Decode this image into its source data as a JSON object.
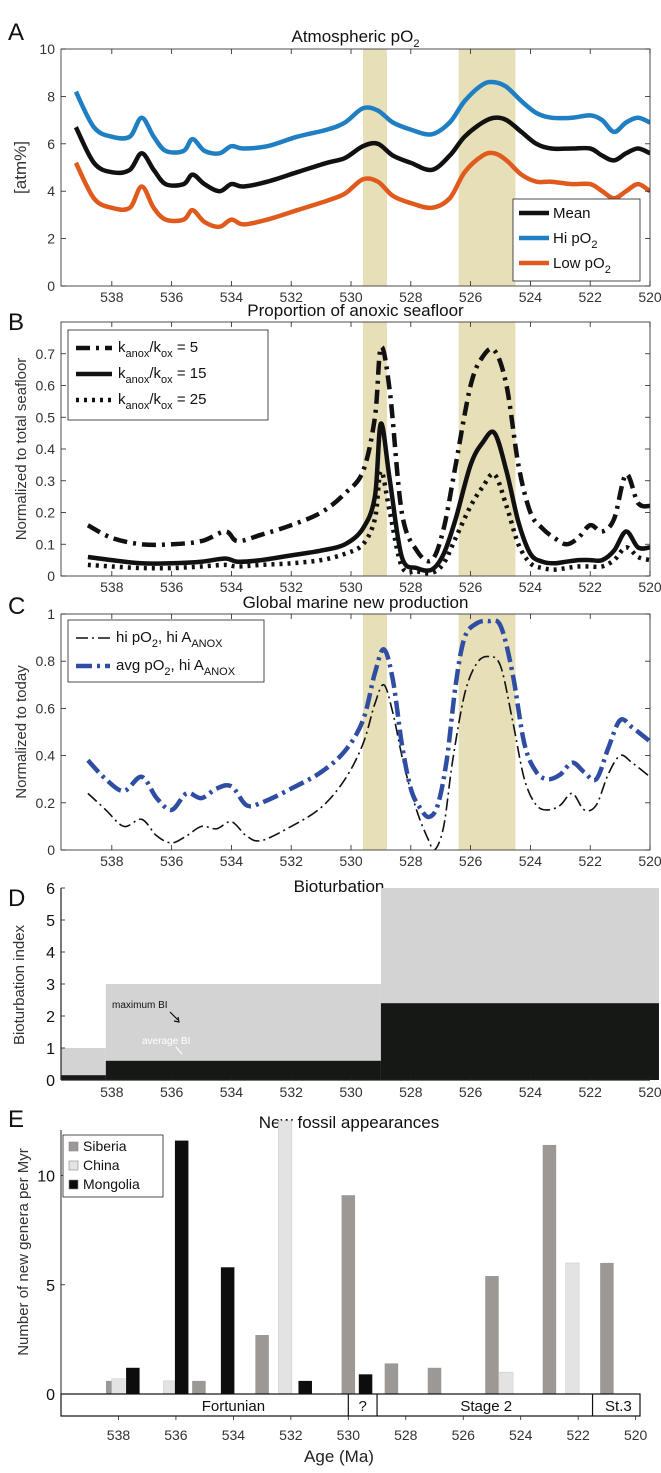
{
  "colors": {
    "band": "#e6dfb8",
    "mean": "#111111",
    "hi": "#1f7fc2",
    "low": "#e05a1e",
    "avg_blue": "#2f4ea3",
    "bt_max": "#d3d3d3",
    "bt_avg": "#161816",
    "siberia": "#9c9896",
    "china": "#e3e3e3",
    "mongolia": "#0d0d0d"
  },
  "shared_x": {
    "reversed": true,
    "ticks": [
      538,
      536,
      534,
      532,
      530,
      528,
      526,
      524,
      522,
      520
    ]
  },
  "xlabel": "Age (Ma)",
  "chart_data": [
    {
      "panel": "A",
      "type": "line",
      "title_main": "Atmospheric pO",
      "title_sub": "2",
      "ylabel": "[atm%]",
      "ylim": [
        0,
        10
      ],
      "yticks": [
        0,
        2,
        4,
        6,
        8,
        10
      ],
      "xlim": [
        539.7,
        520
      ],
      "bands": [
        [
          529.6,
          528.8
        ],
        [
          526.4,
          524.5
        ]
      ],
      "legend": "bottom-right",
      "series": [
        {
          "name": "Mean",
          "key": "mean",
          "x": [
            539.2,
            538.6,
            538.0,
            537.4,
            537.0,
            536.6,
            536.2,
            535.6,
            535.3,
            534.9,
            534.4,
            534.0,
            533.6,
            532.8,
            531.8,
            530.8,
            530.2,
            529.6,
            529.1,
            528.6,
            528.0,
            527.3,
            526.7,
            526.2,
            525.6,
            525.2,
            524.8,
            524.3,
            523.8,
            523.3,
            522.6,
            522.0,
            521.6,
            521.2,
            520.8,
            520.4,
            520.0
          ],
          "y": [
            6.7,
            5.2,
            4.8,
            4.9,
            5.6,
            4.9,
            4.3,
            4.3,
            4.7,
            4.3,
            4.0,
            4.3,
            4.2,
            4.4,
            4.8,
            5.2,
            5.4,
            5.9,
            6.0,
            5.5,
            5.2,
            4.9,
            5.5,
            6.3,
            6.9,
            7.1,
            7.0,
            6.5,
            6.0,
            5.8,
            5.8,
            5.8,
            5.5,
            5.3,
            5.6,
            5.8,
            5.6
          ]
        },
        {
          "name": "Hi pO",
          "sub": "2",
          "key": "hi",
          "x": [
            539.2,
            538.6,
            538.0,
            537.4,
            537.0,
            536.6,
            536.2,
            535.6,
            535.3,
            534.9,
            534.4,
            534.0,
            533.6,
            532.8,
            531.8,
            530.8,
            530.2,
            529.6,
            529.1,
            528.6,
            528.0,
            527.3,
            526.7,
            526.2,
            525.6,
            525.2,
            524.8,
            524.3,
            523.8,
            523.3,
            522.6,
            522.0,
            521.6,
            521.2,
            520.8,
            520.4,
            520.0
          ],
          "y": [
            8.2,
            6.7,
            6.3,
            6.3,
            7.1,
            6.3,
            5.7,
            5.7,
            6.2,
            5.7,
            5.6,
            5.9,
            5.8,
            5.9,
            6.3,
            6.6,
            6.9,
            7.5,
            7.4,
            6.9,
            6.6,
            6.4,
            6.9,
            7.8,
            8.5,
            8.6,
            8.4,
            7.8,
            7.3,
            7.1,
            7.1,
            7.2,
            7.0,
            6.5,
            6.9,
            7.1,
            6.9
          ]
        },
        {
          "name": "Low pO",
          "sub": "2",
          "key": "low",
          "x": [
            539.2,
            538.6,
            538.0,
            537.4,
            537.0,
            536.6,
            536.2,
            535.6,
            535.3,
            534.9,
            534.4,
            534.0,
            533.6,
            532.8,
            531.8,
            530.8,
            530.2,
            529.6,
            529.1,
            528.6,
            528.0,
            527.3,
            526.7,
            526.2,
            525.6,
            525.2,
            524.8,
            524.3,
            523.8,
            523.3,
            522.6,
            522.0,
            521.6,
            521.2,
            520.8,
            520.4,
            520.0
          ],
          "y": [
            5.2,
            3.7,
            3.3,
            3.3,
            4.2,
            3.3,
            2.8,
            2.8,
            3.2,
            2.7,
            2.5,
            2.8,
            2.6,
            2.8,
            3.2,
            3.6,
            3.9,
            4.5,
            4.4,
            3.8,
            3.5,
            3.3,
            3.7,
            4.8,
            5.5,
            5.6,
            5.3,
            4.7,
            4.4,
            4.4,
            4.3,
            4.3,
            4.0,
            3.7,
            4.0,
            4.3,
            4.0
          ]
        }
      ]
    },
    {
      "panel": "B",
      "type": "line",
      "title": "Proportion of anoxic seafloor",
      "ylabel": "Normalized to total seafloor",
      "ylim": [
        0,
        0.8
      ],
      "yticks": [
        0,
        0.1,
        0.2,
        0.3,
        0.4,
        0.5,
        0.6,
        0.7
      ],
      "ytick_labels": [
        "0",
        "0.1",
        "0.2",
        "0.3",
        "0.4",
        "0.5",
        "0.6",
        "0.7"
      ],
      "xlim": [
        539.7,
        520
      ],
      "bands": [
        [
          529.6,
          528.8
        ],
        [
          526.4,
          524.5
        ]
      ],
      "legend": "top-left",
      "series": [
        {
          "label": "k",
          "sub": "anox",
          "mid": "/k",
          "sub2": "ox",
          "value": " = 5",
          "dash": "14,6,3,6",
          "width": 4.5,
          "x": [
            538.8,
            538.0,
            537.0,
            536.0,
            535.0,
            534.2,
            533.8,
            533.0,
            532.0,
            531.0,
            530.2,
            529.6,
            529.2,
            529.0,
            528.7,
            528.3,
            527.8,
            527.3,
            526.9,
            526.5,
            526.0,
            525.6,
            525.2,
            524.8,
            524.4,
            524.0,
            523.6,
            523.2,
            522.8,
            522.4,
            522.0,
            521.6,
            521.2,
            520.8,
            520.4,
            520.0
          ],
          "y": [
            0.16,
            0.12,
            0.1,
            0.1,
            0.11,
            0.14,
            0.11,
            0.13,
            0.16,
            0.2,
            0.26,
            0.33,
            0.5,
            0.72,
            0.58,
            0.2,
            0.08,
            0.05,
            0.15,
            0.35,
            0.6,
            0.69,
            0.71,
            0.6,
            0.35,
            0.2,
            0.15,
            0.12,
            0.1,
            0.12,
            0.16,
            0.14,
            0.18,
            0.32,
            0.23,
            0.22
          ]
        },
        {
          "label": "k",
          "sub": "anox",
          "mid": "/k",
          "sub2": "ox",
          "value": " = 15",
          "dash": "",
          "width": 4.5,
          "x": [
            538.8,
            538.0,
            537.0,
            536.0,
            535.0,
            534.2,
            533.8,
            533.0,
            532.0,
            531.0,
            530.2,
            529.6,
            529.2,
            529.0,
            528.7,
            528.3,
            527.8,
            527.3,
            526.9,
            526.5,
            526.0,
            525.6,
            525.2,
            524.8,
            524.4,
            524.0,
            523.6,
            523.2,
            522.8,
            522.4,
            522.0,
            521.6,
            521.2,
            520.8,
            520.4,
            520.0
          ],
          "y": [
            0.06,
            0.05,
            0.04,
            0.04,
            0.045,
            0.055,
            0.045,
            0.05,
            0.065,
            0.08,
            0.1,
            0.15,
            0.25,
            0.48,
            0.3,
            0.06,
            0.025,
            0.02,
            0.07,
            0.18,
            0.35,
            0.42,
            0.45,
            0.33,
            0.17,
            0.07,
            0.045,
            0.04,
            0.045,
            0.05,
            0.05,
            0.05,
            0.08,
            0.14,
            0.09,
            0.09
          ]
        },
        {
          "label": "k",
          "sub": "anox",
          "mid": "/k",
          "sub2": "ox",
          "value": " = 25",
          "dash": "3,5",
          "width": 4.5,
          "x": [
            538.8,
            538.0,
            537.0,
            536.0,
            535.0,
            534.2,
            533.8,
            533.0,
            532.0,
            531.0,
            530.2,
            529.6,
            529.2,
            529.0,
            528.7,
            528.3,
            527.8,
            527.3,
            526.9,
            526.5,
            526.0,
            525.6,
            525.2,
            524.8,
            524.4,
            524.0,
            523.6,
            523.2,
            522.8,
            522.4,
            522.0,
            521.6,
            521.2,
            520.8,
            520.4,
            520.0
          ],
          "y": [
            0.035,
            0.03,
            0.025,
            0.025,
            0.03,
            0.035,
            0.03,
            0.035,
            0.04,
            0.05,
            0.07,
            0.1,
            0.18,
            0.33,
            0.2,
            0.03,
            0.015,
            0.01,
            0.04,
            0.12,
            0.22,
            0.28,
            0.32,
            0.22,
            0.1,
            0.04,
            0.025,
            0.02,
            0.025,
            0.03,
            0.03,
            0.03,
            0.05,
            0.09,
            0.06,
            0.05
          ]
        }
      ]
    },
    {
      "panel": "C",
      "type": "line",
      "title": "Global marine new production",
      "ylabel": "Normalized to today",
      "ylim": [
        0,
        1
      ],
      "yticks": [
        0,
        0.2,
        0.4,
        0.6,
        0.8,
        1
      ],
      "ytick_labels": [
        "0",
        "0.2",
        "0.4",
        "0.6",
        "0.8",
        "1"
      ],
      "xlim": [
        539.7,
        520
      ],
      "bands": [
        [
          529.6,
          528.8
        ],
        [
          526.4,
          524.5
        ]
      ],
      "legend": "top-left",
      "series": [
        {
          "label": "hi pO",
          "sub": "2",
          "mid": ", hi A",
          "sub2": "ANOX",
          "key": "mean",
          "dash": "12,4,2,4",
          "width": 1.6,
          "x": [
            538.8,
            538.2,
            537.6,
            537.0,
            536.5,
            536.0,
            535.5,
            535.0,
            534.5,
            534.0,
            533.5,
            533.0,
            532.0,
            531.0,
            530.2,
            529.6,
            529.2,
            528.9,
            528.6,
            528.3,
            528.0,
            527.7,
            527.4,
            527.2,
            526.9,
            526.6,
            526.2,
            525.8,
            525.4,
            525.0,
            524.6,
            524.2,
            523.8,
            523.4,
            523.0,
            522.6,
            522.2,
            521.8,
            521.4,
            521.0,
            520.6,
            520.0
          ],
          "y": [
            0.24,
            0.17,
            0.1,
            0.13,
            0.06,
            0.03,
            0.06,
            0.1,
            0.09,
            0.12,
            0.06,
            0.04,
            0.1,
            0.18,
            0.3,
            0.45,
            0.62,
            0.7,
            0.58,
            0.4,
            0.25,
            0.13,
            0.04,
            0.0,
            0.1,
            0.38,
            0.66,
            0.79,
            0.82,
            0.78,
            0.55,
            0.3,
            0.19,
            0.17,
            0.19,
            0.24,
            0.17,
            0.19,
            0.32,
            0.4,
            0.37,
            0.31
          ]
        },
        {
          "label": "avg pO",
          "sub": "2",
          "mid": ", hi A",
          "sub2": "ANOX",
          "key": "avg_blue",
          "dash": "16,5,3,5",
          "width": 4.5,
          "x": [
            538.8,
            538.2,
            537.6,
            537.0,
            536.5,
            536.0,
            535.5,
            535.0,
            534.5,
            534.0,
            533.5,
            533.0,
            532.0,
            531.0,
            530.2,
            529.6,
            529.2,
            528.9,
            528.6,
            528.3,
            528.0,
            527.7,
            527.4,
            527.1,
            526.8,
            526.5,
            526.2,
            525.8,
            525.4,
            525.0,
            524.6,
            524.2,
            523.8,
            523.4,
            523.0,
            522.6,
            522.2,
            521.8,
            521.4,
            521.0,
            520.6,
            520.0
          ],
          "y": [
            0.38,
            0.3,
            0.25,
            0.31,
            0.22,
            0.17,
            0.24,
            0.22,
            0.26,
            0.27,
            0.19,
            0.2,
            0.26,
            0.33,
            0.42,
            0.55,
            0.75,
            0.85,
            0.72,
            0.45,
            0.26,
            0.18,
            0.14,
            0.19,
            0.38,
            0.7,
            0.9,
            0.96,
            0.97,
            0.95,
            0.75,
            0.45,
            0.33,
            0.3,
            0.32,
            0.37,
            0.33,
            0.3,
            0.43,
            0.55,
            0.52,
            0.46
          ]
        }
      ]
    },
    {
      "panel": "D",
      "type": "area",
      "title": "Bioturbation",
      "ylabel": "Bioturbation index",
      "ylim": [
        0,
        6
      ],
      "yticks": [
        0,
        1,
        2,
        3,
        4,
        5,
        6
      ],
      "xlim": [
        539.7,
        520
      ],
      "annotations": {
        "max": "maximum BI",
        "avg": "average BI"
      },
      "max_steps": [
        {
          "x0": 539.7,
          "x1": 538.2,
          "y": 1.0
        },
        {
          "x0": 538.2,
          "x1": 529.0,
          "y": 3.0
        },
        {
          "x0": 529.0,
          "x1": 519.7,
          "y": 6.0
        }
      ],
      "avg_steps": [
        {
          "x0": 539.7,
          "x1": 538.2,
          "y": 0.15
        },
        {
          "x0": 538.2,
          "x1": 529.0,
          "y": 0.6
        },
        {
          "x0": 529.0,
          "x1": 519.7,
          "y": 2.4
        }
      ]
    },
    {
      "panel": "E",
      "type": "bar",
      "title": "New fossil appearances",
      "ylabel": "Number of new genera per Myr",
      "ylim": [
        0,
        13
      ],
      "yticks": [
        0,
        5,
        10
      ],
      "xlim": [
        540,
        519.5
      ],
      "legend": "top-left",
      "series": [
        {
          "name": "Siberia",
          "key": "siberia",
          "x": [
            538.2,
            536.2,
            535.2,
            533.0,
            530.0,
            528.5,
            527.0,
            525.0,
            523.0,
            521.0
          ],
          "values": [
            0.6,
            0.6,
            0.6,
            2.7,
            9.1,
            1.4,
            1.2,
            5.4,
            11.4,
            6.0
          ]
        },
        {
          "name": "China",
          "key": "china",
          "x": [
            538.0,
            536.2,
            532.2,
            524.5,
            522.2
          ],
          "values": [
            0.7,
            0.6,
            12.5,
            1.0,
            6.0
          ]
        },
        {
          "name": "Mongolia",
          "key": "mongolia",
          "x": [
            537.5,
            535.8,
            534.2,
            531.5,
            529.4
          ],
          "values": [
            1.2,
            11.6,
            5.8,
            0.6,
            0.9
          ]
        }
      ],
      "stages": [
        {
          "label": "Fortunian",
          "x0": 540.0,
          "x1": 530.0,
          "cx": 534.0
        },
        {
          "label": "?",
          "x0": 530.0,
          "x1": 529.0,
          "cx": 529.5
        },
        {
          "label": "Stage 2",
          "x0": 529.0,
          "x1": 521.5,
          "cx": 525.2
        },
        {
          "label": "St.3",
          "x0": 521.5,
          "x1": 519.5,
          "cx": 520.6
        }
      ]
    }
  ]
}
